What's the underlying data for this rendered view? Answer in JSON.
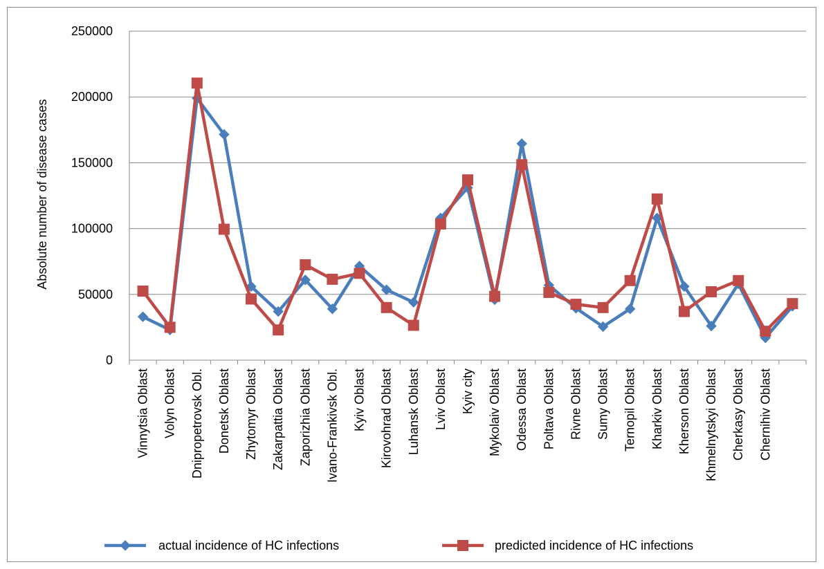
{
  "chart_data": {
    "type": "line",
    "title": "",
    "xlabel": "",
    "ylabel": "Absolute number of disease cases",
    "ylim": [
      0,
      250000
    ],
    "yticks": [
      0,
      50000,
      100000,
      150000,
      200000,
      250000
    ],
    "ytick_labels": [
      "0",
      "50000",
      "100000",
      "150000",
      "200000",
      "250000"
    ],
    "grid": "horizontal",
    "legend_position": "bottom",
    "categories": [
      "Vinnytsia Oblast",
      "Volyn Oblast",
      "Dnipropetrovsk Obl.",
      "Donetsk Oblast",
      "Zhytomyr Oblast",
      "Zakarpattia Oblast",
      "Zaporizhia Oblast",
      "Ivano-Frankivsk Obl.",
      "Kyiv Oblast",
      "Kirovohrad Oblast",
      "Luhansk Oblast",
      "Lviv Oblast",
      "Kyiv city",
      "Mykolaiv Oblast",
      "Odessa Oblast",
      "Poltava Oblast",
      "Rivne Oblast",
      "Sumy Oblast",
      "Ternopil Oblast",
      "Kharkiv Oblast",
      "Kherson Oblast",
      "Khmelnytskyi Oblast",
      "Cherkasy Oblast",
      "Chernihiv Oblast",
      ""
    ],
    "series": [
      {
        "name": "actual incidence of HC infections",
        "color": "#4a7ebb",
        "marker": "diamond",
        "values": [
          33000,
          23000,
          199000,
          171500,
          56000,
          37000,
          61000,
          39000,
          71500,
          53500,
          44000,
          108000,
          131000,
          46000,
          164500,
          57000,
          39500,
          25500,
          39000,
          108000,
          56000,
          26000,
          58000,
          17000,
          41000
        ]
      },
      {
        "name": "predicted incidence of HC infections",
        "color": "#be4b48",
        "marker": "square",
        "values": [
          52500,
          25000,
          210500,
          99500,
          46500,
          23000,
          72500,
          61500,
          66000,
          40000,
          26500,
          103500,
          137000,
          48500,
          148500,
          51500,
          42500,
          40000,
          60500,
          122500,
          37000,
          52000,
          60500,
          22000,
          43000
        ]
      }
    ]
  }
}
